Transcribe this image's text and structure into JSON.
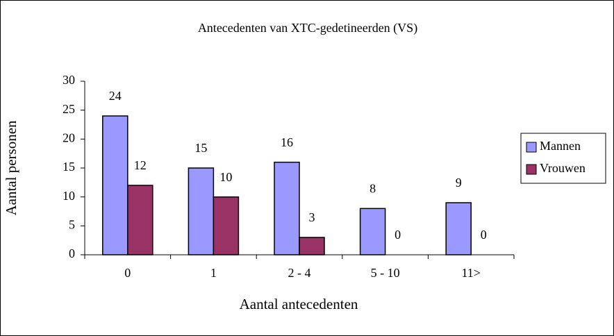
{
  "chart_data": {
    "type": "bar",
    "title": "Antecedenten van XTC-gedetineerden (VS)",
    "x_label": "Aantal antecedenten",
    "y_label": "Aantal personen",
    "categories": [
      "0",
      "1",
      "2 - 4",
      "5 - 10",
      "11>"
    ],
    "series": [
      {
        "name": "Mannen",
        "color": "#9999ff",
        "values": [
          24,
          15,
          16,
          8,
          9
        ]
      },
      {
        "name": "Vrouwen",
        "color": "#993366",
        "values": [
          12,
          10,
          3,
          0,
          0
        ]
      }
    ],
    "ylim": [
      0,
      30
    ],
    "yticks": [
      0,
      5,
      10,
      15,
      20,
      25,
      30
    ],
    "legend": "right"
  }
}
